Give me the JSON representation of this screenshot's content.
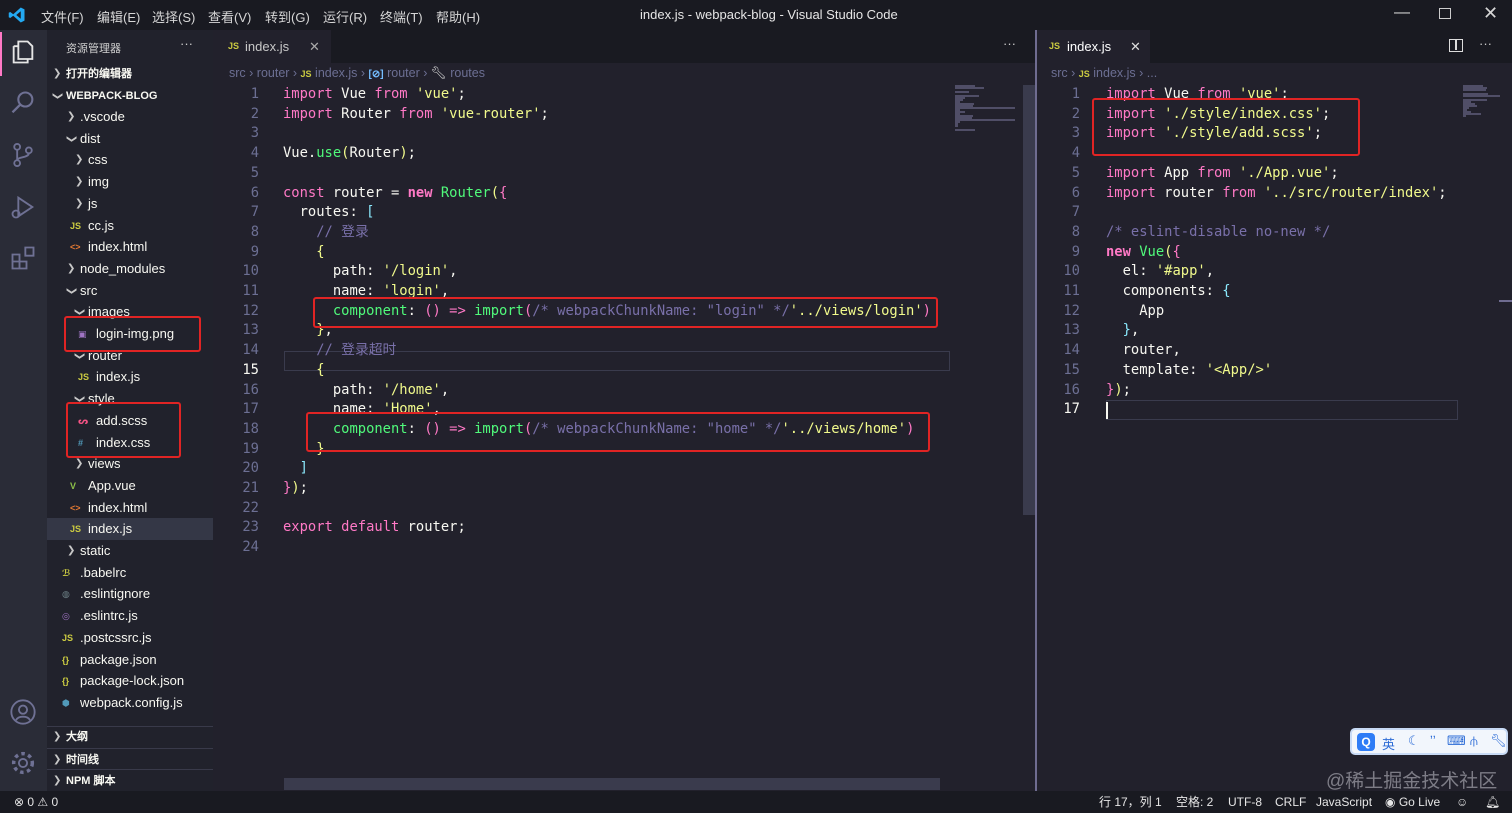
{
  "titlebar": {
    "menus": [
      "文件(F)",
      "编辑(E)",
      "选择(S)",
      "查看(V)",
      "转到(G)",
      "运行(R)",
      "终端(T)",
      "帮助(H)"
    ],
    "title": "index.js - webpack-blog - Visual Studio Code"
  },
  "sidebar": {
    "title": "资源管理器",
    "more": "···",
    "open_editors": "打开的编辑器",
    "project": "WEBPACK-BLOG",
    "tree": [
      {
        "label": ".vscode",
        "type": "folder",
        "open": false,
        "depth": 0
      },
      {
        "label": "dist",
        "type": "folder",
        "open": true,
        "depth": 0
      },
      {
        "label": "css",
        "type": "folder",
        "open": false,
        "depth": 1
      },
      {
        "label": "img",
        "type": "folder",
        "open": false,
        "depth": 1
      },
      {
        "label": "js",
        "type": "folder",
        "open": false,
        "depth": 1
      },
      {
        "label": "cc.js",
        "type": "js",
        "depth": 1
      },
      {
        "label": "index.html",
        "type": "html",
        "depth": 1
      },
      {
        "label": "node_modules",
        "type": "folder",
        "open": false,
        "depth": 0
      },
      {
        "label": "src",
        "type": "folder",
        "open": true,
        "depth": 0
      },
      {
        "label": "images",
        "type": "folder",
        "open": true,
        "depth": 1
      },
      {
        "label": "login-img.png",
        "type": "image",
        "depth": 2
      },
      {
        "label": "router",
        "type": "folder",
        "open": true,
        "depth": 1
      },
      {
        "label": "index.js",
        "type": "js",
        "depth": 2
      },
      {
        "label": "style",
        "type": "folder",
        "open": true,
        "depth": 1
      },
      {
        "label": "add.scss",
        "type": "scss",
        "depth": 2
      },
      {
        "label": "index.css",
        "type": "css",
        "depth": 2
      },
      {
        "label": "views",
        "type": "folder",
        "open": false,
        "depth": 1
      },
      {
        "label": "App.vue",
        "type": "vue",
        "depth": 1
      },
      {
        "label": "index.html",
        "type": "html",
        "depth": 1
      },
      {
        "label": "index.js",
        "type": "js",
        "depth": 1,
        "selected": true
      },
      {
        "label": "static",
        "type": "folder",
        "open": false,
        "depth": 0
      },
      {
        "label": ".babelrc",
        "type": "babel",
        "depth": 0
      },
      {
        "label": ".eslintignore",
        "type": "ignore",
        "depth": 0
      },
      {
        "label": ".eslintrc.js",
        "type": "eslint",
        "depth": 0
      },
      {
        "label": ".postcssrc.js",
        "type": "js",
        "depth": 0
      },
      {
        "label": "package.json",
        "type": "json",
        "depth": 0
      },
      {
        "label": "package-lock.json",
        "type": "json",
        "depth": 0
      },
      {
        "label": "webpack.config.js",
        "type": "webpack",
        "depth": 0
      }
    ],
    "bottom_sections": [
      "大纲",
      "时间线",
      "NPM 脚本"
    ]
  },
  "left_editor": {
    "tab": "index.js",
    "tab_icon": "JS",
    "more": "···",
    "breadcrumb": [
      "src",
      "router",
      "index.js",
      "router",
      "routes"
    ],
    "lines": [
      [
        [
          "k",
          "import"
        ],
        [
          "p",
          " Vue "
        ],
        [
          "k",
          "from"
        ],
        [
          "p",
          " "
        ],
        [
          "s",
          "'vue'"
        ],
        [
          "p",
          ";"
        ]
      ],
      [
        [
          "k",
          "import"
        ],
        [
          "p",
          " Router "
        ],
        [
          "k",
          "from"
        ],
        [
          "p",
          " "
        ],
        [
          "s",
          "'vue-router'"
        ],
        [
          "p",
          ";"
        ]
      ],
      [],
      [
        [
          "p",
          "Vue."
        ],
        [
          "f",
          "use"
        ],
        [
          "b",
          "("
        ],
        [
          "p",
          "Router"
        ],
        [
          "b",
          ")"
        ],
        [
          "p",
          ";"
        ]
      ],
      [],
      [
        [
          "k",
          "const"
        ],
        [
          "p",
          " router = "
        ],
        [
          "k bd",
          "new"
        ],
        [
          "p",
          " "
        ],
        [
          "f",
          "Router"
        ],
        [
          "b",
          "("
        ],
        [
          "pu",
          "{"
        ]
      ],
      [
        [
          "p",
          "  routes: "
        ],
        [
          "bl",
          "["
        ]
      ],
      [
        [
          "c",
          "    // 登录"
        ]
      ],
      [
        [
          "p",
          "    "
        ],
        [
          "b",
          "{"
        ]
      ],
      [
        [
          "p",
          "      path: "
        ],
        [
          "s",
          "'/login'"
        ],
        [
          "p",
          ","
        ]
      ],
      [
        [
          "p",
          "      name: "
        ],
        [
          "s",
          "'login'"
        ],
        [
          "p",
          ","
        ]
      ],
      [
        [
          "p",
          "      "
        ],
        [
          "f",
          "component"
        ],
        [
          "p",
          ": "
        ],
        [
          "pu",
          "()"
        ],
        [
          "k",
          " => "
        ],
        [
          "f",
          "import"
        ],
        [
          "pu",
          "("
        ],
        [
          "c",
          "/* webpackChunkName: \"login\" */"
        ],
        [
          "s",
          "'../views/login'"
        ],
        [
          "pu",
          ")"
        ]
      ],
      [
        [
          "p",
          "    "
        ],
        [
          "b",
          "}"
        ],
        [
          "p",
          ","
        ]
      ],
      [
        [
          "c",
          "    // 登录超时"
        ]
      ],
      [
        [
          "p",
          "    "
        ],
        [
          "b",
          "{"
        ]
      ],
      [
        [
          "p",
          "      path: "
        ],
        [
          "s",
          "'/home'"
        ],
        [
          "p",
          ","
        ]
      ],
      [
        [
          "p",
          "      name: "
        ],
        [
          "s",
          "'Home'"
        ],
        [
          "p",
          ","
        ]
      ],
      [
        [
          "p",
          "      "
        ],
        [
          "f",
          "component"
        ],
        [
          "p",
          ": "
        ],
        [
          "pu",
          "()"
        ],
        [
          "k",
          " => "
        ],
        [
          "f",
          "import"
        ],
        [
          "pu",
          "("
        ],
        [
          "c",
          "/* webpackChunkName: \"home\" */"
        ],
        [
          "s",
          "'../views/home'"
        ],
        [
          "pu",
          ")"
        ]
      ],
      [
        [
          "p",
          "    "
        ],
        [
          "b",
          "}"
        ]
      ],
      [
        [
          "p",
          "  "
        ],
        [
          "bl",
          "]"
        ]
      ],
      [
        [
          "pu",
          "}"
        ],
        [
          "b",
          ")"
        ],
        [
          "p",
          ";"
        ]
      ],
      [],
      [
        [
          "k",
          "export"
        ],
        [
          "p",
          " "
        ],
        [
          "k",
          "default"
        ],
        [
          "p",
          " router;"
        ]
      ],
      []
    ]
  },
  "right_editor": {
    "tab": "index.js",
    "tab_icon": "JS",
    "more": "···",
    "breadcrumb": [
      "src",
      "index.js",
      "..."
    ],
    "lines": [
      [
        [
          "k",
          "import"
        ],
        [
          "p",
          " Vue "
        ],
        [
          "k",
          "from"
        ],
        [
          "p",
          " "
        ],
        [
          "s",
          "'vue'"
        ],
        [
          "p",
          ";"
        ]
      ],
      [
        [
          "k",
          "import"
        ],
        [
          "p",
          " "
        ],
        [
          "s",
          "'./style/index.css'"
        ],
        [
          "p",
          ";"
        ]
      ],
      [
        [
          "k",
          "import"
        ],
        [
          "p",
          " "
        ],
        [
          "s",
          "'./style/add.scss'"
        ],
        [
          "p",
          ";"
        ]
      ],
      [],
      [
        [
          "k",
          "import"
        ],
        [
          "p",
          " App "
        ],
        [
          "k",
          "from"
        ],
        [
          "p",
          " "
        ],
        [
          "s",
          "'./App.vue'"
        ],
        [
          "p",
          ";"
        ]
      ],
      [
        [
          "k",
          "import"
        ],
        [
          "p",
          " router "
        ],
        [
          "k",
          "from"
        ],
        [
          "p",
          " "
        ],
        [
          "s",
          "'../src/router/index'"
        ],
        [
          "p",
          ";"
        ]
      ],
      [],
      [
        [
          "c",
          "/* eslint-disable no-new */"
        ]
      ],
      [
        [
          "k bd",
          "new"
        ],
        [
          "p",
          " "
        ],
        [
          "f",
          "Vue"
        ],
        [
          "b",
          "("
        ],
        [
          "pu",
          "{"
        ]
      ],
      [
        [
          "p",
          "  el: "
        ],
        [
          "s",
          "'#app'"
        ],
        [
          "p",
          ","
        ]
      ],
      [
        [
          "p",
          "  components: "
        ],
        [
          "bl",
          "{"
        ]
      ],
      [
        [
          "p",
          "    App"
        ]
      ],
      [
        [
          "p",
          "  "
        ],
        [
          "bl",
          "}"
        ],
        [
          "p",
          ","
        ]
      ],
      [
        [
          "p",
          "  router,"
        ]
      ],
      [
        [
          "p",
          "  template: "
        ],
        [
          "s",
          "'<App/>'"
        ]
      ],
      [
        [
          "pu",
          "}"
        ],
        [
          "b",
          ")"
        ],
        [
          "p",
          ";"
        ]
      ],
      []
    ]
  },
  "ime_toolbar": {
    "lang": "英"
  },
  "watermark": "@稀土掘金技术社区",
  "status": {
    "errors": "0",
    "warnings": "0",
    "position": "行 17，列 1",
    "spaces": "空格: 2",
    "encoding": "UTF-8",
    "eol": "CRLF",
    "language": "JavaScript",
    "golive": "Go Live"
  },
  "colors": {
    "keyword": "#ff79c6",
    "string": "#f1fa8c",
    "function": "#50fa7b",
    "comment": "#7970a9",
    "annotation": "#e02424"
  }
}
